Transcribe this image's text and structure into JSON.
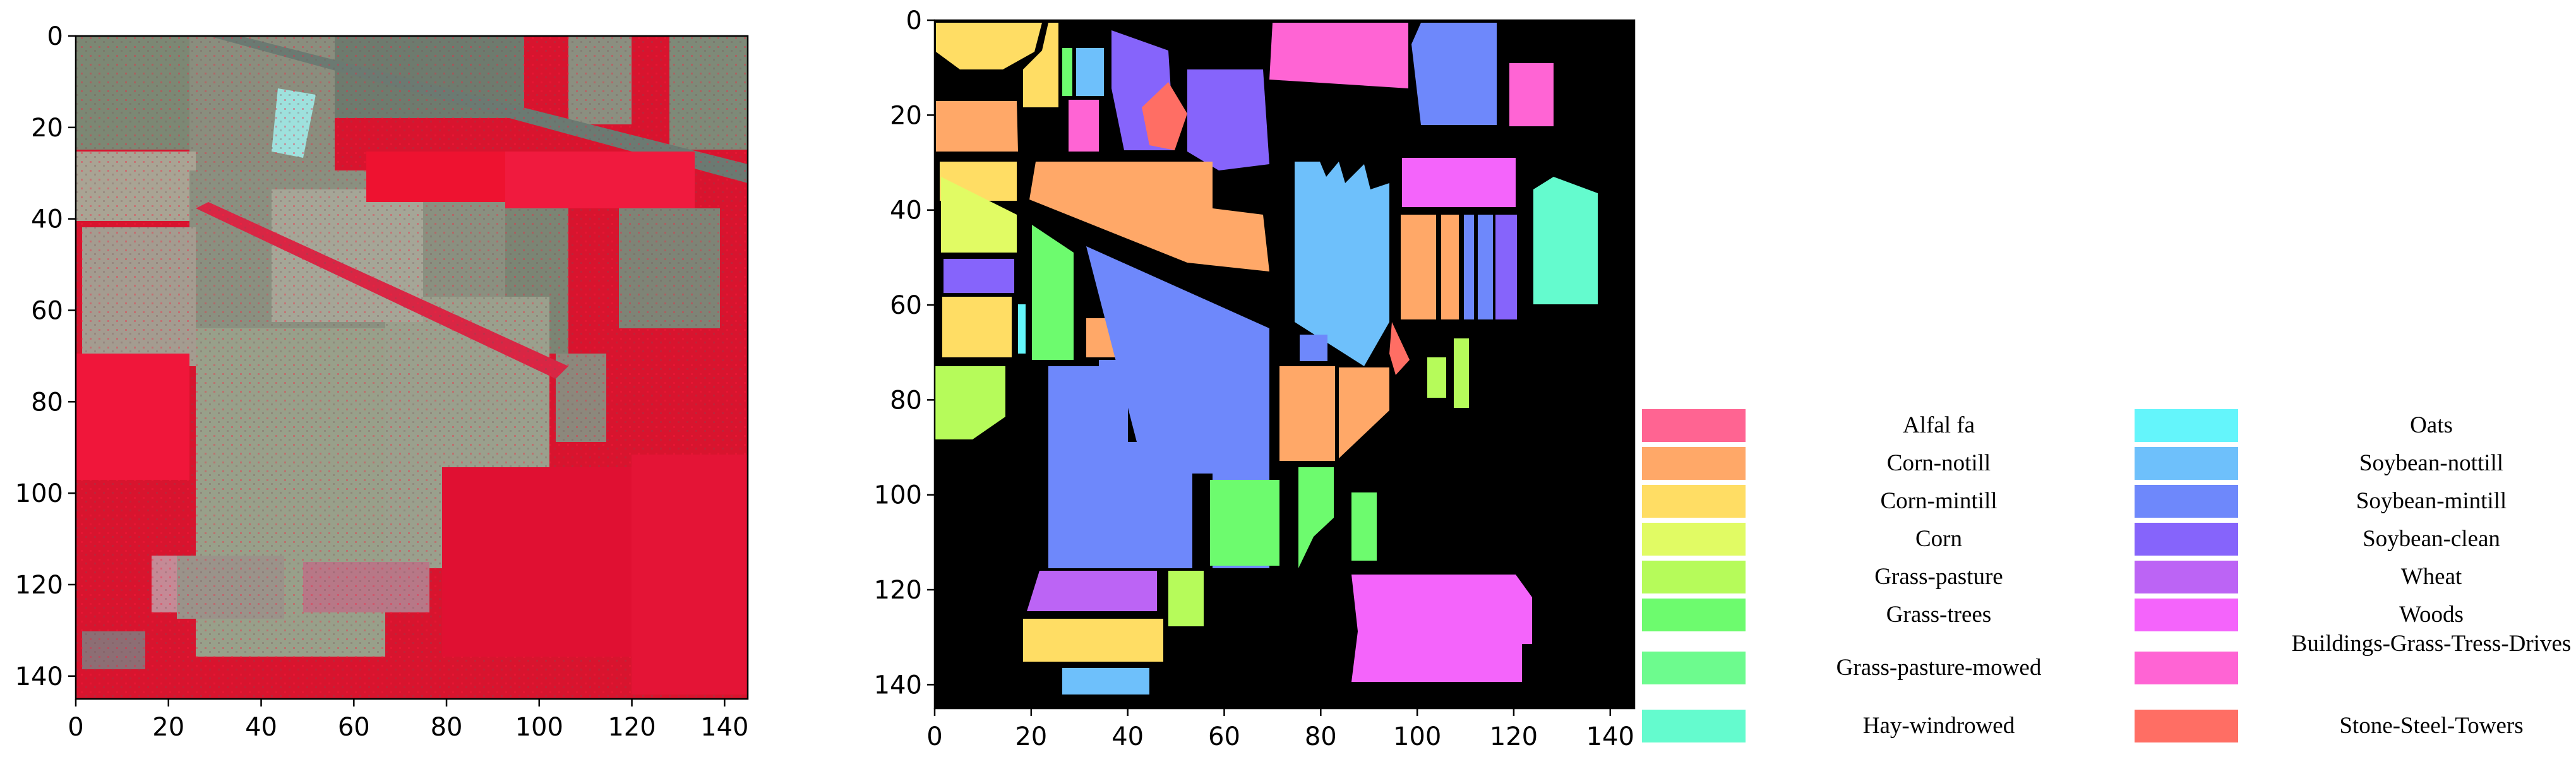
{
  "figure": {
    "left_panel": {
      "x_ticks": [
        "0",
        "20",
        "40",
        "60",
        "80",
        "100",
        "120",
        "140"
      ],
      "y_ticks": [
        "0",
        "20",
        "40",
        "60",
        "80",
        "100",
        "120",
        "140"
      ]
    },
    "right_panel": {
      "x_ticks": [
        "0",
        "20",
        "40",
        "60",
        "80",
        "100",
        "120",
        "140"
      ],
      "y_ticks": [
        "0",
        "20",
        "40",
        "60",
        "80",
        "100",
        "120",
        "140"
      ]
    },
    "legend": [
      {
        "label": "Alfal fa",
        "color": "#ff6492"
      },
      {
        "label": "Corn-notill",
        "color": "#ffa868"
      },
      {
        "label": "Corn-mintill",
        "color": "#ffdd64"
      },
      {
        "label": "Corn",
        "color": "#e1fb64"
      },
      {
        "label": "Grass-pasture",
        "color": "#b6fb5a"
      },
      {
        "label": "Grass-trees",
        "color": "#6dfb6e"
      },
      {
        "label": "Grass-pasture-mowed",
        "color": "#6dfb8e"
      },
      {
        "label": "Hay-windrowed",
        "color": "#64fbce"
      },
      {
        "label": "Oats",
        "color": "#64f5fb"
      },
      {
        "label": "Soybean-nottill",
        "color": "#6ec0fb"
      },
      {
        "label": "Soybean-mintill",
        "color": "#6e88fb"
      },
      {
        "label": "Soybean-clean",
        "color": "#8664fb"
      },
      {
        "label": "Wheat",
        "color": "#bc64f5"
      },
      {
        "label": "Woods",
        "color": "#f464fb"
      },
      {
        "label": "Buildings-Grass-Tress-Drives",
        "color": "#ff64d4"
      },
      {
        "label": "Stone-Steel-Towers",
        "color": "#ff6e64"
      }
    ]
  }
}
